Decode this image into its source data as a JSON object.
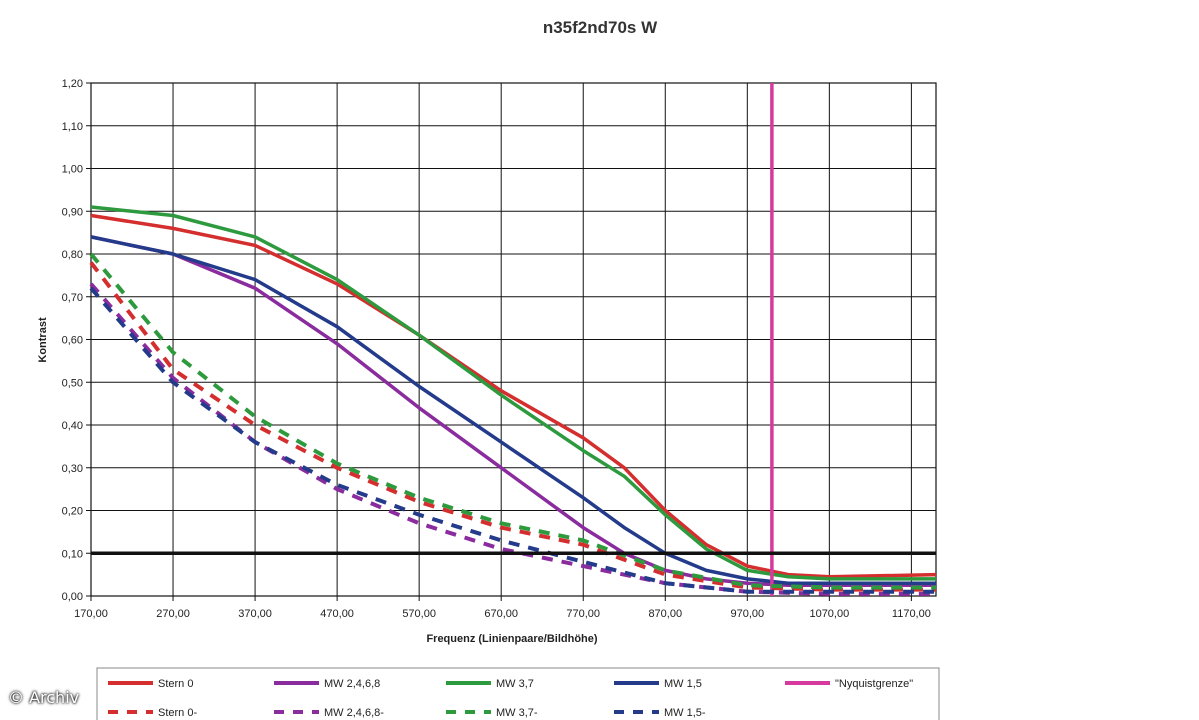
{
  "credit": "© Archiv",
  "chart_data": {
    "type": "line",
    "title": "n35f2nd70s W",
    "xlabel": "Frequenz (Linienpaare/Bildhöhe)",
    "ylabel": "Kontrast",
    "xlim": [
      170,
      1200
    ],
    "ylim": [
      0,
      1.2
    ],
    "xticks": [
      "170,00",
      "270,00",
      "370,00",
      "470,00",
      "570,00",
      "670,00",
      "770,00",
      "870,00",
      "970,00",
      "1070,00",
      "1170,00"
    ],
    "yticks": [
      "0,00",
      "0,10",
      "0,20",
      "0,30",
      "0,40",
      "0,50",
      "0,60",
      "0,70",
      "0,80",
      "0,90",
      "1,00",
      "1,10",
      "1,20"
    ],
    "grid": true,
    "legend_position": "bottom",
    "reference_line": {
      "y": 0.1,
      "color": "#111111"
    },
    "series": [
      {
        "name": "Stern 0",
        "color": "#d42e2e",
        "dash": false,
        "x": [
          170,
          270,
          370,
          470,
          570,
          670,
          770,
          820,
          870,
          920,
          970,
          1020,
          1070,
          1200
        ],
        "y": [
          0.89,
          0.86,
          0.82,
          0.73,
          0.61,
          0.48,
          0.37,
          0.3,
          0.2,
          0.12,
          0.07,
          0.05,
          0.045,
          0.05
        ]
      },
      {
        "name": "MW 2,4,6,8",
        "color": "#8a2b9e",
        "dash": false,
        "x": [
          170,
          270,
          370,
          470,
          570,
          670,
          770,
          820,
          870,
          920,
          970,
          1020,
          1200
        ],
        "y": [
          0.84,
          0.8,
          0.72,
          0.59,
          0.44,
          0.3,
          0.16,
          0.1,
          0.06,
          0.04,
          0.03,
          0.025,
          0.025
        ]
      },
      {
        "name": "MW 3,7",
        "color": "#2e9a3e",
        "dash": false,
        "x": [
          170,
          270,
          370,
          470,
          570,
          670,
          770,
          820,
          870,
          920,
          970,
          1020,
          1070,
          1200
        ],
        "y": [
          0.91,
          0.89,
          0.84,
          0.74,
          0.61,
          0.47,
          0.34,
          0.28,
          0.19,
          0.11,
          0.06,
          0.045,
          0.04,
          0.04
        ]
      },
      {
        "name": "MW 1,5",
        "color": "#233b8a",
        "dash": false,
        "x": [
          170,
          270,
          370,
          470,
          570,
          670,
          770,
          820,
          870,
          920,
          970,
          1020,
          1200
        ],
        "y": [
          0.84,
          0.8,
          0.74,
          0.63,
          0.49,
          0.36,
          0.23,
          0.16,
          0.1,
          0.06,
          0.04,
          0.03,
          0.03
        ]
      },
      {
        "name": "\"Nyquistgrenze\"",
        "color": "#d63a9e",
        "dash": false,
        "x": [
          1000,
          1000
        ],
        "y": [
          0,
          1.2
        ]
      },
      {
        "name": "Stern 0-",
        "color": "#d42e2e",
        "dash": true,
        "x": [
          170,
          270,
          370,
          470,
          570,
          670,
          770,
          870,
          970,
          1070,
          1200
        ],
        "y": [
          0.78,
          0.53,
          0.4,
          0.3,
          0.22,
          0.16,
          0.12,
          0.05,
          0.02,
          0.015,
          0.015
        ]
      },
      {
        "name": "MW 2,4,6,8-",
        "color": "#8a2b9e",
        "dash": true,
        "x": [
          170,
          270,
          370,
          470,
          570,
          670,
          770,
          870,
          970,
          1070,
          1200
        ],
        "y": [
          0.73,
          0.51,
          0.36,
          0.25,
          0.17,
          0.11,
          0.07,
          0.03,
          0.01,
          0.005,
          0.005
        ]
      },
      {
        "name": "MW 3,7-",
        "color": "#2e9a3e",
        "dash": true,
        "x": [
          170,
          270,
          370,
          470,
          570,
          670,
          770,
          870,
          970,
          1070,
          1200
        ],
        "y": [
          0.8,
          0.57,
          0.42,
          0.31,
          0.23,
          0.17,
          0.13,
          0.06,
          0.025,
          0.02,
          0.02
        ]
      },
      {
        "name": "MW 1,5-",
        "color": "#233b8a",
        "dash": true,
        "x": [
          170,
          270,
          370,
          470,
          570,
          670,
          770,
          870,
          970,
          1070,
          1200
        ],
        "y": [
          0.72,
          0.5,
          0.36,
          0.26,
          0.19,
          0.13,
          0.08,
          0.03,
          0.01,
          0.01,
          0.01
        ]
      }
    ]
  }
}
